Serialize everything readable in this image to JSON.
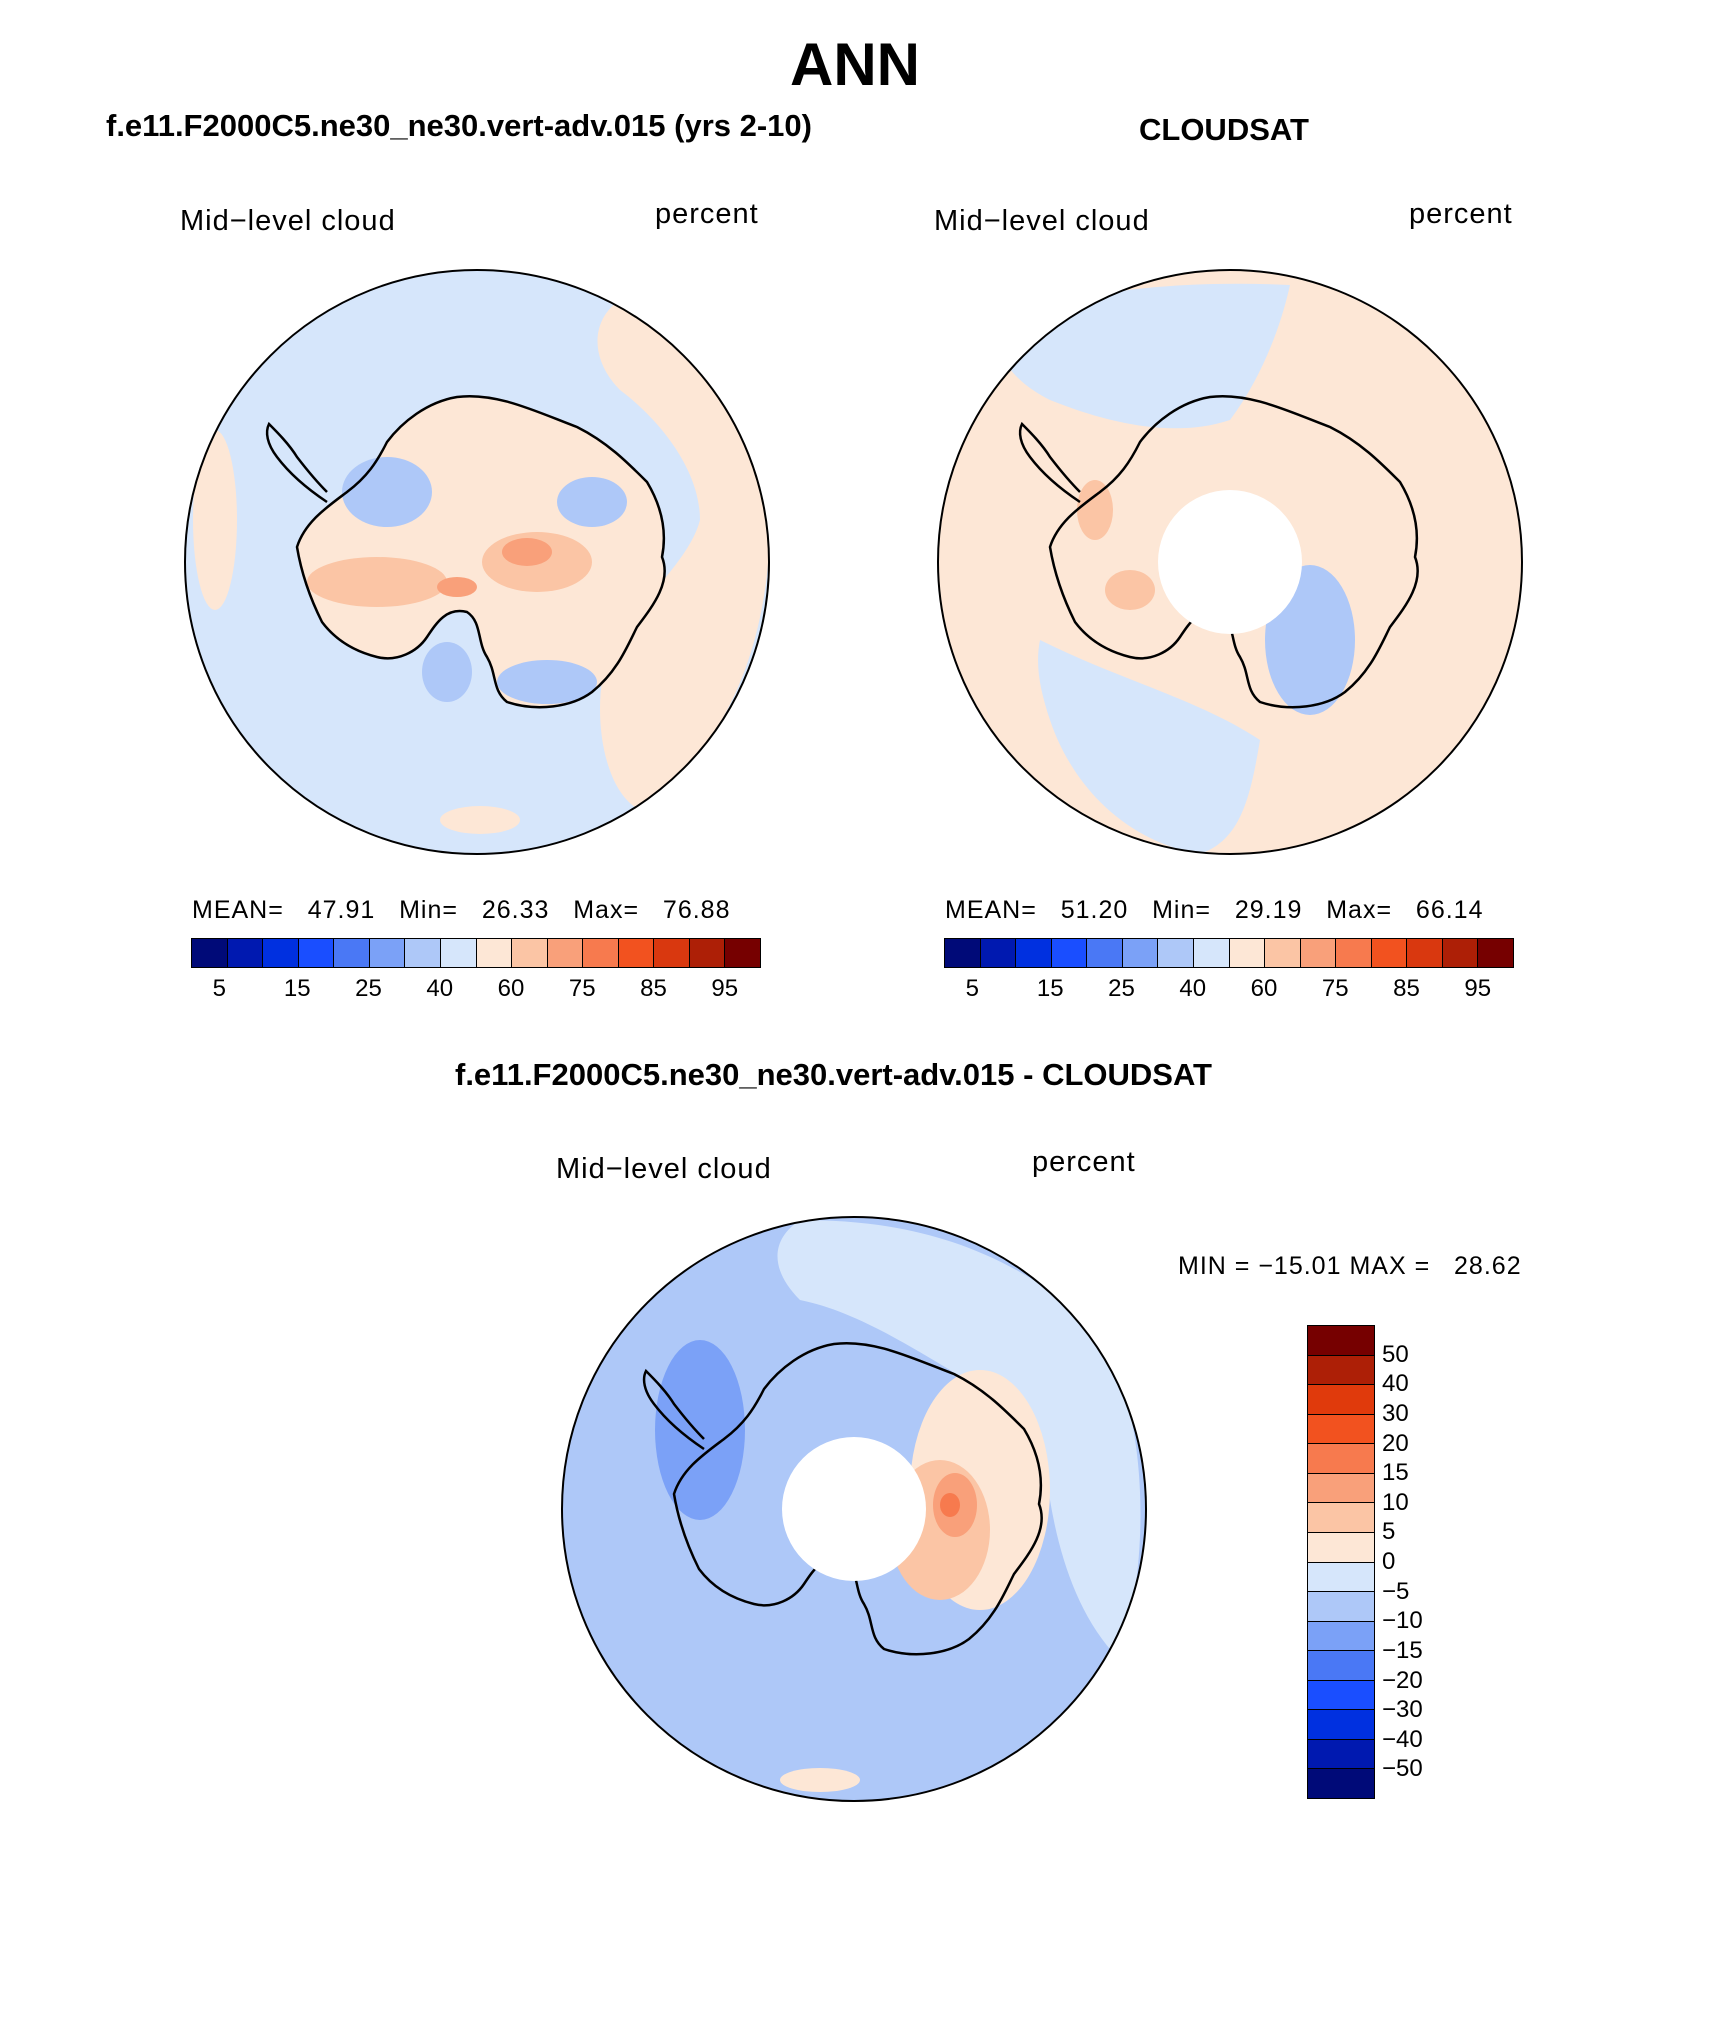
{
  "figure": {
    "title": "ANN",
    "panel1_title": "f.e11.F2000C5.ne30_ne30.vert-adv.015 (yrs 2-10)",
    "panel2_title": "CLOUDSAT",
    "panel3_title": "f.e11.F2000C5.ne30_ne30.vert-adv.015 - CLOUDSAT"
  },
  "chart_data": [
    {
      "type": "polar-contour-map",
      "name": "model",
      "variable_label": "Mid−level cloud",
      "units_label": "percent",
      "stats": {
        "mean_label": "MEAN=",
        "mean": "47.91",
        "min_label": "Min=",
        "min": "26.33",
        "max_label": "Max=",
        "max": "76.88"
      },
      "colorbar": {
        "colors": [
          "#000a78",
          "#0019b0",
          "#0030e0",
          "#1a4eff",
          "#4a78f5",
          "#7ba1f7",
          "#aec8f8",
          "#d6e6fb",
          "#fde7d6",
          "#fbc5a5",
          "#f9a07a",
          "#f77a4e",
          "#f2521f",
          "#d9380f",
          "#ad1f06",
          "#760000"
        ],
        "tick_labels": [
          "5",
          "15",
          "25",
          "40",
          "60",
          "75",
          "85",
          "95"
        ]
      },
      "has_missing_pole": false
    },
    {
      "type": "polar-contour-map",
      "name": "obs",
      "variable_label": "Mid−level cloud",
      "units_label": "percent",
      "stats": {
        "mean_label": "MEAN=",
        "mean": "51.20",
        "min_label": "Min=",
        "min": "29.19",
        "max_label": "Max=",
        "max": "66.14"
      },
      "colorbar": {
        "colors": [
          "#000a78",
          "#0019b0",
          "#0030e0",
          "#1a4eff",
          "#4a78f5",
          "#7ba1f7",
          "#aec8f8",
          "#d6e6fb",
          "#fde7d6",
          "#fbc5a5",
          "#f9a07a",
          "#f77a4e",
          "#f2521f",
          "#d9380f",
          "#ad1f06",
          "#760000"
        ],
        "tick_labels": [
          "5",
          "15",
          "25",
          "40",
          "60",
          "75",
          "85",
          "95"
        ]
      },
      "has_missing_pole": true
    },
    {
      "type": "polar-contour-map",
      "name": "difference",
      "variable_label": "Mid−level cloud",
      "units_label": "percent",
      "stats": {
        "min_label": "MIN =",
        "min": "−15.01",
        "max_label": "MAX =",
        "max": "28.62"
      },
      "colorbar": {
        "colors_top_to_bottom": [
          "#760000",
          "#ad1f06",
          "#e03a0c",
          "#f2521f",
          "#f77a4e",
          "#f9a07a",
          "#fbc5a5",
          "#fde7d6",
          "#d6e6fb",
          "#aec8f8",
          "#7ba1f7",
          "#4a78f5",
          "#1a4eff",
          "#0030e0",
          "#0019b0",
          "#000a78"
        ],
        "tick_labels_top_to_bottom": [
          "50",
          "40",
          "30",
          "20",
          "15",
          "10",
          "5",
          "0",
          "−5",
          "−10",
          "−15",
          "−20",
          "−30",
          "−40",
          "−50"
        ]
      },
      "has_missing_pole": true
    }
  ]
}
